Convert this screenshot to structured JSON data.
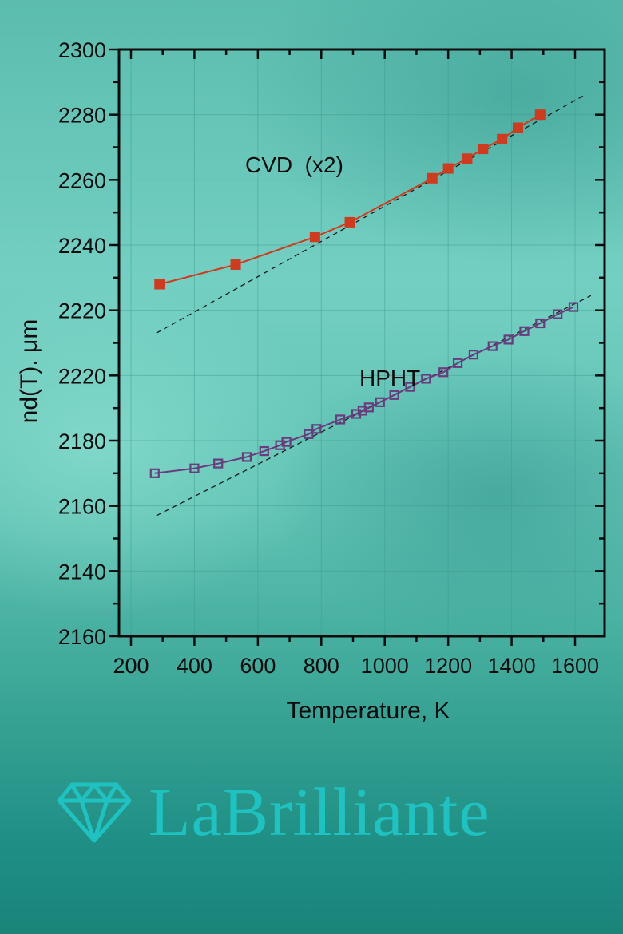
{
  "chart_data": {
    "type": "line",
    "title": "",
    "xlabel": "Temperature, K",
    "ylabel": "nd(T). μm",
    "xlim": [
      140,
      1700
    ],
    "ylim_label_order_top_to_bottom": [
      "2300",
      "2280",
      "2260",
      "2240",
      "2220",
      "2220",
      "2180",
      "2160",
      "2140",
      "2160"
    ],
    "x_ticks": [
      200,
      400,
      600,
      800,
      1000,
      1200,
      1400,
      1600
    ],
    "y_ticks": [
      "2300",
      "2280",
      "2260",
      "2240",
      "2220",
      "2220",
      "2180",
      "2160",
      "2140",
      "2160"
    ],
    "grid": true,
    "annotations": [
      {
        "text": "CVD  (x2)",
        "series": "CVD"
      },
      {
        "text": "HPHT",
        "series": "HPHT"
      }
    ],
    "series": [
      {
        "name": "CVD (x2)",
        "marker": "filled-square",
        "color": "#d03a1e",
        "x": [
          290,
          530,
          780,
          890,
          1150,
          1200,
          1260,
          1310,
          1370,
          1420,
          1490
        ],
        "y": [
          2228,
          2234,
          2242.5,
          2247,
          2260.5,
          2263.5,
          2266.5,
          2269.5,
          2272.5,
          2276,
          2280
        ],
        "fit_line": {
          "style": "dashed",
          "x": [
            280,
            1630
          ],
          "y": [
            2213,
            2286
          ]
        }
      },
      {
        "name": "HPHT",
        "marker": "open-square",
        "color": "#6a3c7e",
        "x_pixels_note": "values read on same linear scale as axis positions",
        "x": [
          275,
          400,
          475,
          565,
          620,
          670,
          690,
          760,
          785,
          860,
          910,
          930,
          950,
          985,
          1030,
          1080,
          1130,
          1185,
          1230,
          1280,
          1340,
          1390,
          1440,
          1490,
          1545,
          1595
        ],
        "y": [
          2170,
          2171.5,
          2173,
          2175,
          2176.8,
          2178.6,
          2179.6,
          2182,
          2183.6,
          2186.5,
          2188.2,
          2189.2,
          2190.2,
          2191.8,
          2194,
          2196.5,
          2199,
          2201,
          2203.8,
          2206.4,
          2209,
          2211,
          2213.6,
          2216,
          2218.8,
          2221
        ],
        "fit_line": {
          "style": "dashed",
          "x": [
            280,
            1650
          ],
          "y": [
            2157,
            2224.5
          ]
        }
      }
    ]
  },
  "brand": {
    "name": "LaBrilliante",
    "icon": "diamond-icon",
    "color": "#1fc2c0"
  },
  "colors": {
    "cvd": "#d03a1e",
    "hpht": "#6a3c7e",
    "axis": "#0c0c0c",
    "grid": "#4a9f94"
  }
}
